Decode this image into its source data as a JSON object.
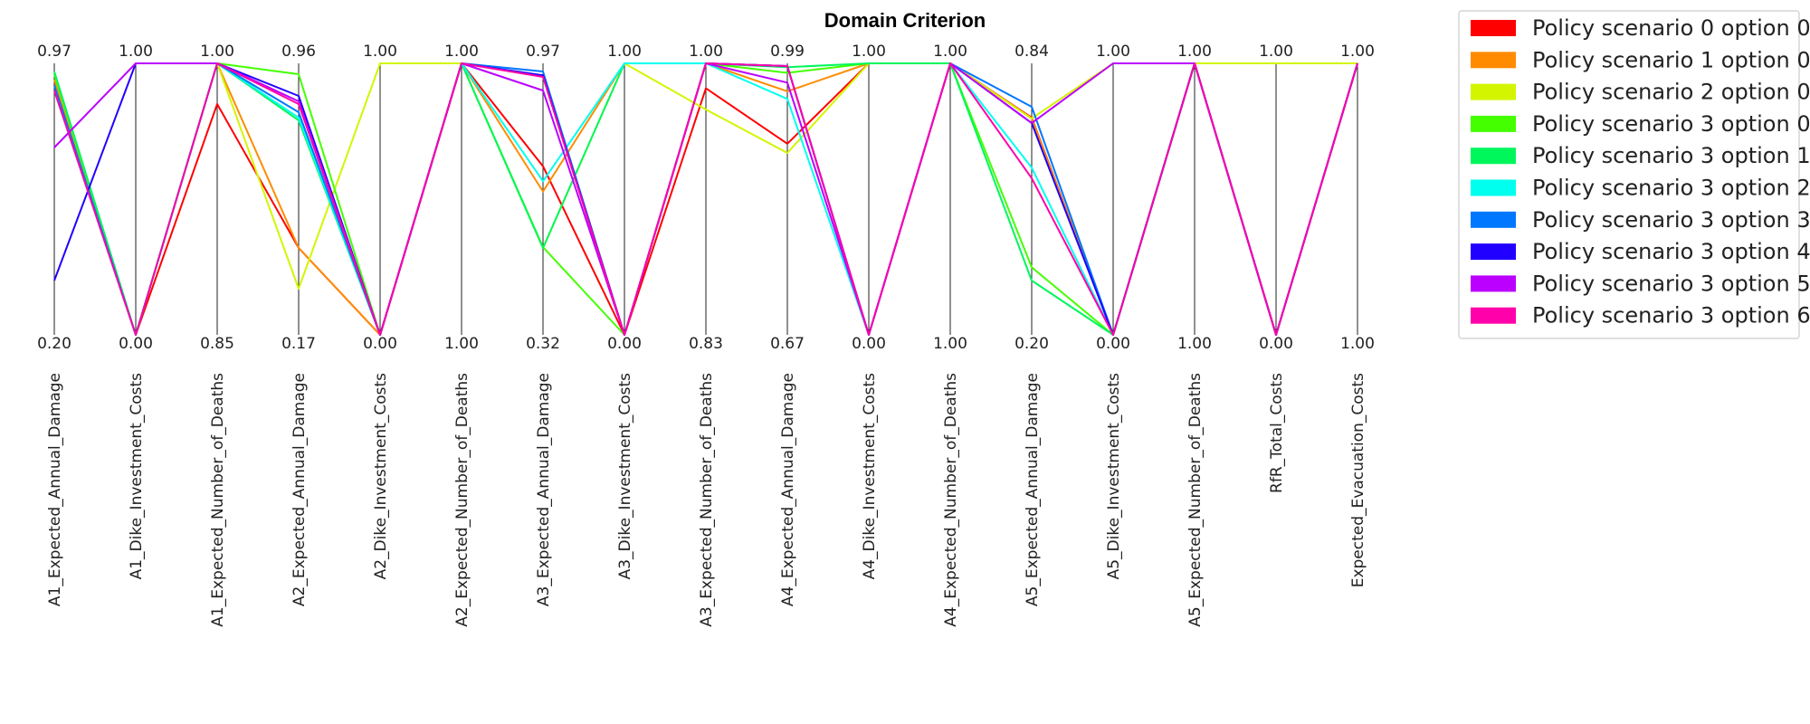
{
  "chart_data": {
    "type": "parallel_coordinates",
    "title": "Domain Criterion",
    "axes": [
      {
        "name": "A1_Expected_Annual_Damage",
        "top": "0.97",
        "bottom": "0.20"
      },
      {
        "name": "A1_Dike_Investment_Costs",
        "top": "1.00",
        "bottom": "0.00"
      },
      {
        "name": "A1_Expected_Number_of_Deaths",
        "top": "1.00",
        "bottom": "0.85"
      },
      {
        "name": "A2_Expected_Annual_Damage",
        "top": "0.96",
        "bottom": "0.17"
      },
      {
        "name": "A2_Dike_Investment_Costs",
        "top": "1.00",
        "bottom": "0.00"
      },
      {
        "name": "A2_Expected_Number_of_Deaths",
        "top": "1.00",
        "bottom": "1.00"
      },
      {
        "name": "A3_Expected_Annual_Damage",
        "top": "0.97",
        "bottom": "0.32"
      },
      {
        "name": "A3_Dike_Investment_Costs",
        "top": "1.00",
        "bottom": "0.00"
      },
      {
        "name": "A3_Expected_Number_of_Deaths",
        "top": "1.00",
        "bottom": "0.83"
      },
      {
        "name": "A4_Expected_Annual_Damage",
        "top": "0.99",
        "bottom": "0.67"
      },
      {
        "name": "A4_Dike_Investment_Costs",
        "top": "1.00",
        "bottom": "0.00"
      },
      {
        "name": "A4_Expected_Number_of_Deaths",
        "top": "1.00",
        "bottom": "1.00"
      },
      {
        "name": "A5_Expected_Annual_Damage",
        "top": "0.84",
        "bottom": "0.20"
      },
      {
        "name": "A5_Dike_Investment_Costs",
        "top": "1.00",
        "bottom": "0.00"
      },
      {
        "name": "A5_Expected_Number_of_Deaths",
        "top": "1.00",
        "bottom": "1.00"
      },
      {
        "name": "RfR_Total_Costs",
        "top": "1.00",
        "bottom": "0.00"
      },
      {
        "name": "Expected_Evacuation_Costs",
        "top": "1.00",
        "bottom": "1.00"
      }
    ],
    "series": [
      {
        "name": "Policy scenario 0 option 0",
        "color": "#ff0000",
        "values": [
          0.92,
          0.0,
          0.85,
          0.32,
          0.0,
          1.0,
          0.621,
          0.0,
          0.908,
          0.704,
          1.0,
          1.0,
          0.8,
          0.0,
          1.0,
          0.0,
          1.0
        ]
      },
      {
        "name": "Policy scenario 1 option 0",
        "color": "#ff8c00",
        "values": [
          0.94,
          0.0,
          1.0,
          0.32,
          0.0,
          1.0,
          0.528,
          1.0,
          1.0,
          0.897,
          1.0,
          1.0,
          0.797,
          0.0,
          1.0,
          0.0,
          1.0
        ]
      },
      {
        "name": "Policy scenario 2 option 0",
        "color": "#d4f500",
        "values": [
          0.96,
          0.0,
          1.0,
          0.17,
          1.0,
          1.0,
          0.32,
          1.0,
          0.83,
          0.67,
          1.0,
          1.0,
          0.797,
          1.0,
          1.0,
          1.0,
          1.0
        ]
      },
      {
        "name": "Policy scenario 3 option 0",
        "color": "#44ff00",
        "values": [
          0.96,
          0.0,
          1.0,
          0.96,
          0.0,
          1.0,
          0.323,
          0.0,
          1.0,
          0.965,
          1.0,
          1.0,
          0.249,
          0.0,
          1.0,
          0.0,
          1.0
        ]
      },
      {
        "name": "Policy scenario 3 option 1",
        "color": "#00f75b",
        "values": [
          0.97,
          0.0,
          1.0,
          0.79,
          0.0,
          1.0,
          0.32,
          1.0,
          1.0,
          0.986,
          1.0,
          1.0,
          0.2,
          0.0,
          1.0,
          0.0,
          1.0
        ]
      },
      {
        "name": "Policy scenario 3 option 2",
        "color": "#00ffee",
        "values": [
          0.9,
          0.0,
          1.0,
          0.8,
          0.0,
          1.0,
          0.566,
          1.0,
          1.0,
          0.869,
          0.0,
          1.0,
          0.616,
          0.0,
          1.0,
          0.0,
          1.0
        ]
      },
      {
        "name": "Policy scenario 3 option 3",
        "color": "#0077ff",
        "values": [
          0.92,
          0.0,
          1.0,
          0.82,
          0.0,
          1.0,
          0.97,
          0.0,
          1.0,
          0.99,
          0.0,
          1.0,
          0.84,
          0.0,
          1.0,
          0.0,
          1.0
        ]
      },
      {
        "name": "Policy scenario 3 option 4",
        "color": "#2200ff",
        "values": [
          0.2,
          1.0,
          1.0,
          0.88,
          0.0,
          1.0,
          0.956,
          0.0,
          1.0,
          0.99,
          0.0,
          1.0,
          0.78,
          0.0,
          1.0,
          0.0,
          1.0
        ]
      },
      {
        "name": "Policy scenario 3 option 5",
        "color": "#bb00ff",
        "values": [
          0.69,
          1.0,
          1.0,
          0.86,
          0.0,
          1.0,
          0.9,
          0.0,
          1.0,
          0.929,
          0.0,
          1.0,
          0.78,
          1.0,
          1.0,
          0.0,
          1.0
        ]
      },
      {
        "name": "Policy scenario 3 option 6",
        "color": "#ff00aa",
        "values": [
          0.9,
          0.0,
          1.0,
          0.85,
          0.0,
          1.0,
          0.95,
          0.0,
          1.0,
          0.99,
          0.0,
          1.0,
          0.577,
          0.0,
          1.0,
          0.0,
          1.0
        ]
      }
    ],
    "ylim": [
      0,
      1
    ],
    "grid": false,
    "legend_position": "top-right"
  }
}
